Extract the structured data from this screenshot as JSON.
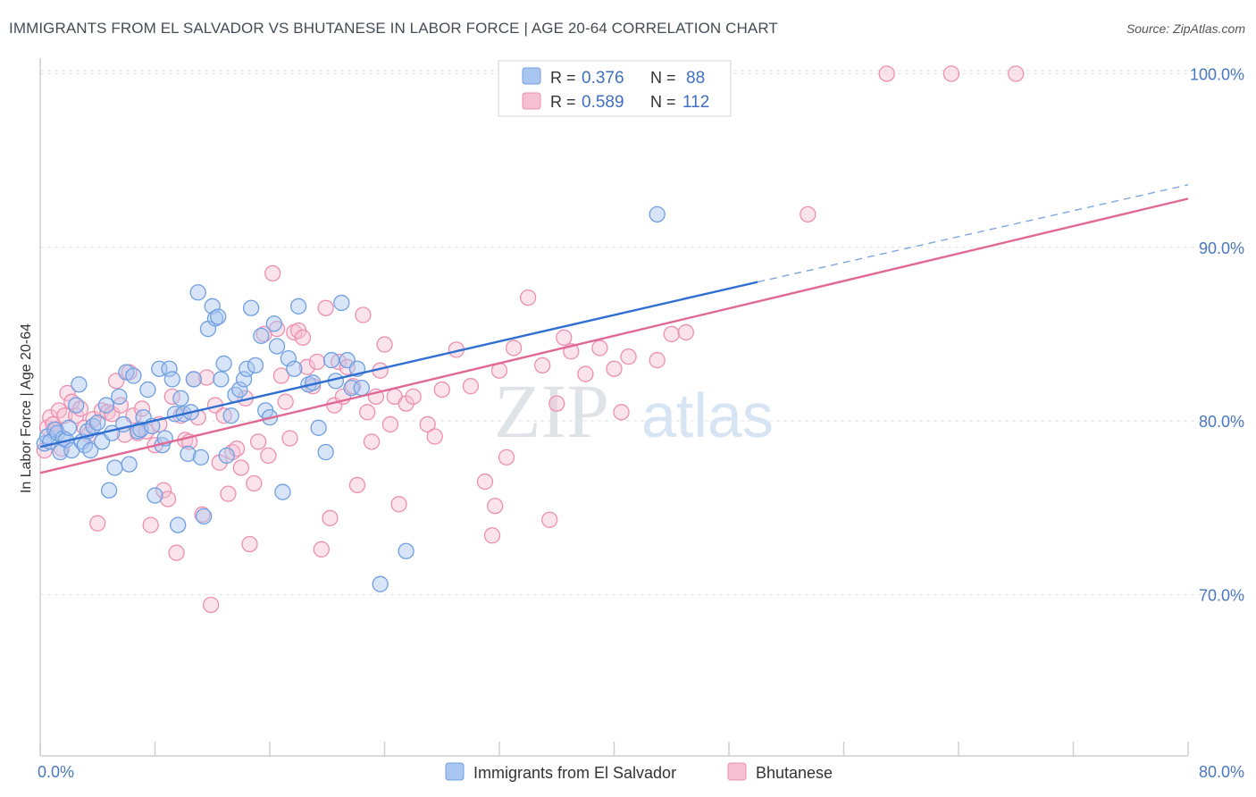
{
  "title": "IMMIGRANTS FROM EL SALVADOR VS BHUTANESE IN LABOR FORCE | AGE 20-64 CORRELATION CHART",
  "source": "Source: ZipAtlas.com",
  "watermark": {
    "zip": "ZIP",
    "atlas": "atlas"
  },
  "colors": {
    "blue": "#6f9fe0",
    "blue_fill": "#a9c6f0",
    "blue_line": "#2f6fd1",
    "pink": "#ec8fb0",
    "pink_fill": "#f6c0d3",
    "pink_line": "#e26894"
  },
  "legend": {
    "items": [
      {
        "r_label": "R =",
        "r_value": "0.376",
        "n_label": "N =",
        "n_value": "88"
      },
      {
        "r_label": "R =",
        "r_value": "0.589",
        "n_label": "N =",
        "n_value": "112"
      }
    ]
  },
  "bottom_legend": [
    "Immigrants from El Salvador",
    "Bhutanese"
  ],
  "chart_data": {
    "type": "scatter",
    "title": "IMMIGRANTS FROM EL SALVADOR VS BHUTANESE IN LABOR FORCE | AGE 20-64 CORRELATION CHART",
    "xlabel": "",
    "ylabel": "In Labor Force | Age 20-64",
    "xlim": [
      0,
      80
    ],
    "ylim": [
      60.7,
      100.9
    ],
    "x_tick_labels": [
      "0.0%",
      "80.0%"
    ],
    "y_ticks": [
      70,
      80,
      90,
      100
    ],
    "y_tick_labels": [
      "70.0%",
      "80.0%",
      "90.0%",
      "100.0%"
    ],
    "grid": "horizontal dashed",
    "legend_position": "top-center",
    "series": [
      {
        "name": "Immigrants from El Salvador",
        "color": "#6f9fe0",
        "trend": {
          "x0": 0,
          "y0": 78.5,
          "x1": 50,
          "y1": 88.0,
          "dashed_to_x": 80,
          "dashed_to_y": 93.6
        },
        "points": [
          [
            0.3,
            78.7
          ],
          [
            0.5,
            79.1
          ],
          [
            0.7,
            78.8
          ],
          [
            1.0,
            79.5
          ],
          [
            1.2,
            79.3
          ],
          [
            1.4,
            78.2
          ],
          [
            1.6,
            79.0
          ],
          [
            1.8,
            78.9
          ],
          [
            2.0,
            79.6
          ],
          [
            2.2,
            78.3
          ],
          [
            2.5,
            80.9
          ],
          [
            2.7,
            82.1
          ],
          [
            2.9,
            78.8
          ],
          [
            3.1,
            78.6
          ],
          [
            3.3,
            79.4
          ],
          [
            3.5,
            78.3
          ],
          [
            3.7,
            79.7
          ],
          [
            4.0,
            79.9
          ],
          [
            4.3,
            78.8
          ],
          [
            4.6,
            80.9
          ],
          [
            4.8,
            76.0
          ],
          [
            5.0,
            79.3
          ],
          [
            5.2,
            77.3
          ],
          [
            5.5,
            81.4
          ],
          [
            5.8,
            79.8
          ],
          [
            6.0,
            82.8
          ],
          [
            6.2,
            77.5
          ],
          [
            6.5,
            82.6
          ],
          [
            6.8,
            79.4
          ],
          [
            7.0,
            79.5
          ],
          [
            7.2,
            80.2
          ],
          [
            7.5,
            81.8
          ],
          [
            7.8,
            79.7
          ],
          [
            8.0,
            75.7
          ],
          [
            8.3,
            83.0
          ],
          [
            8.5,
            78.6
          ],
          [
            8.7,
            79.0
          ],
          [
            9.0,
            83.0
          ],
          [
            9.2,
            82.4
          ],
          [
            9.4,
            80.4
          ],
          [
            9.6,
            74.0
          ],
          [
            9.8,
            81.3
          ],
          [
            10.0,
            80.4
          ],
          [
            10.3,
            78.1
          ],
          [
            10.5,
            80.5
          ],
          [
            10.7,
            82.4
          ],
          [
            11.0,
            87.4
          ],
          [
            11.2,
            77.9
          ],
          [
            11.4,
            74.5
          ],
          [
            11.7,
            85.3
          ],
          [
            12.0,
            86.6
          ],
          [
            12.2,
            85.9
          ],
          [
            12.4,
            86.0
          ],
          [
            12.6,
            82.4
          ],
          [
            12.8,
            83.3
          ],
          [
            13.0,
            78.0
          ],
          [
            13.3,
            80.3
          ],
          [
            13.6,
            81.5
          ],
          [
            13.9,
            81.8
          ],
          [
            14.2,
            82.4
          ],
          [
            14.4,
            83.0
          ],
          [
            14.7,
            86.5
          ],
          [
            15.0,
            83.2
          ],
          [
            15.4,
            84.9
          ],
          [
            15.7,
            80.6
          ],
          [
            16.0,
            80.2
          ],
          [
            16.3,
            85.6
          ],
          [
            16.5,
            84.3
          ],
          [
            16.9,
            75.9
          ],
          [
            17.3,
            83.6
          ],
          [
            17.7,
            83.0
          ],
          [
            18.0,
            86.6
          ],
          [
            18.7,
            82.1
          ],
          [
            19.0,
            82.2
          ],
          [
            19.4,
            79.6
          ],
          [
            19.9,
            78.2
          ],
          [
            20.3,
            83.5
          ],
          [
            20.6,
            82.3
          ],
          [
            21.0,
            86.8
          ],
          [
            21.4,
            83.5
          ],
          [
            21.7,
            81.9
          ],
          [
            22.1,
            83.0
          ],
          [
            22.4,
            81.9
          ],
          [
            23.7,
            70.6
          ],
          [
            25.5,
            72.5
          ],
          [
            43.0,
            91.9
          ]
        ]
      },
      {
        "name": "Bhutanese",
        "color": "#ec8fb0",
        "trend": {
          "x0": 0,
          "y0": 77.0,
          "x1": 80,
          "y1": 92.8
        },
        "points": [
          [
            0.3,
            78.3
          ],
          [
            0.5,
            79.6
          ],
          [
            0.7,
            80.2
          ],
          [
            0.9,
            79.8
          ],
          [
            1.1,
            79.5
          ],
          [
            1.3,
            80.6
          ],
          [
            1.5,
            78.4
          ],
          [
            1.7,
            80.3
          ],
          [
            1.9,
            81.6
          ],
          [
            2.2,
            81.1
          ],
          [
            2.5,
            80.3
          ],
          [
            2.8,
            80.7
          ],
          [
            3.1,
            79.6
          ],
          [
            3.4,
            79.2
          ],
          [
            3.7,
            80.1
          ],
          [
            4.0,
            74.1
          ],
          [
            4.3,
            80.6
          ],
          [
            4.7,
            80.5
          ],
          [
            5.0,
            80.4
          ],
          [
            5.3,
            82.3
          ],
          [
            5.6,
            80.9
          ],
          [
            5.9,
            79.2
          ],
          [
            6.2,
            82.8
          ],
          [
            6.5,
            80.3
          ],
          [
            6.8,
            79.3
          ],
          [
            7.1,
            80.7
          ],
          [
            7.4,
            79.4
          ],
          [
            7.7,
            74.0
          ],
          [
            8.0,
            78.6
          ],
          [
            8.3,
            79.8
          ],
          [
            8.6,
            76.0
          ],
          [
            8.9,
            75.5
          ],
          [
            9.2,
            81.4
          ],
          [
            9.5,
            72.4
          ],
          [
            9.8,
            80.3
          ],
          [
            10.1,
            78.9
          ],
          [
            10.4,
            78.8
          ],
          [
            10.7,
            82.4
          ],
          [
            11.0,
            80.2
          ],
          [
            11.3,
            74.6
          ],
          [
            11.6,
            82.5
          ],
          [
            11.9,
            69.4
          ],
          [
            12.2,
            80.9
          ],
          [
            12.5,
            77.6
          ],
          [
            12.8,
            80.3
          ],
          [
            13.1,
            75.8
          ],
          [
            13.4,
            78.2
          ],
          [
            13.7,
            78.4
          ],
          [
            14.0,
            77.3
          ],
          [
            14.3,
            81.3
          ],
          [
            14.6,
            72.9
          ],
          [
            14.9,
            76.4
          ],
          [
            15.2,
            78.8
          ],
          [
            15.6,
            85.0
          ],
          [
            15.9,
            78.0
          ],
          [
            16.2,
            88.5
          ],
          [
            16.5,
            85.3
          ],
          [
            16.8,
            82.6
          ],
          [
            17.1,
            81.1
          ],
          [
            17.4,
            79.0
          ],
          [
            17.7,
            85.1
          ],
          [
            18.0,
            85.2
          ],
          [
            18.3,
            84.8
          ],
          [
            18.6,
            83.1
          ],
          [
            19.0,
            82.0
          ],
          [
            19.3,
            83.4
          ],
          [
            19.6,
            72.6
          ],
          [
            19.9,
            86.5
          ],
          [
            20.2,
            74.4
          ],
          [
            20.5,
            80.9
          ],
          [
            20.8,
            83.4
          ],
          [
            21.1,
            81.4
          ],
          [
            21.4,
            83.1
          ],
          [
            21.8,
            82.0
          ],
          [
            22.1,
            76.3
          ],
          [
            22.5,
            86.1
          ],
          [
            22.8,
            80.5
          ],
          [
            23.1,
            78.8
          ],
          [
            23.4,
            81.4
          ],
          [
            23.7,
            82.9
          ],
          [
            24.0,
            84.4
          ],
          [
            24.4,
            79.8
          ],
          [
            24.7,
            81.4
          ],
          [
            25.0,
            75.2
          ],
          [
            25.5,
            81.0
          ],
          [
            26.0,
            81.4
          ],
          [
            27.0,
            79.8
          ],
          [
            27.5,
            79.1
          ],
          [
            28.0,
            81.8
          ],
          [
            29.0,
            84.1
          ],
          [
            30.0,
            82.0
          ],
          [
            31.0,
            76.5
          ],
          [
            31.5,
            73.4
          ],
          [
            31.7,
            75.1
          ],
          [
            32.0,
            82.9
          ],
          [
            32.5,
            77.9
          ],
          [
            33.0,
            84.2
          ],
          [
            34.0,
            87.1
          ],
          [
            35.0,
            83.2
          ],
          [
            35.5,
            74.3
          ],
          [
            36.0,
            81.0
          ],
          [
            36.5,
            84.8
          ],
          [
            37.0,
            84.0
          ],
          [
            38.0,
            82.7
          ],
          [
            39.0,
            84.2
          ],
          [
            40.0,
            83.0
          ],
          [
            40.5,
            80.5
          ],
          [
            41.0,
            83.7
          ],
          [
            43.0,
            83.5
          ],
          [
            44.0,
            85.0
          ],
          [
            45.0,
            85.1
          ],
          [
            53.5,
            91.9
          ],
          [
            59.0,
            100.0
          ],
          [
            63.5,
            100.0
          ],
          [
            68.0,
            100.0
          ]
        ]
      }
    ]
  }
}
